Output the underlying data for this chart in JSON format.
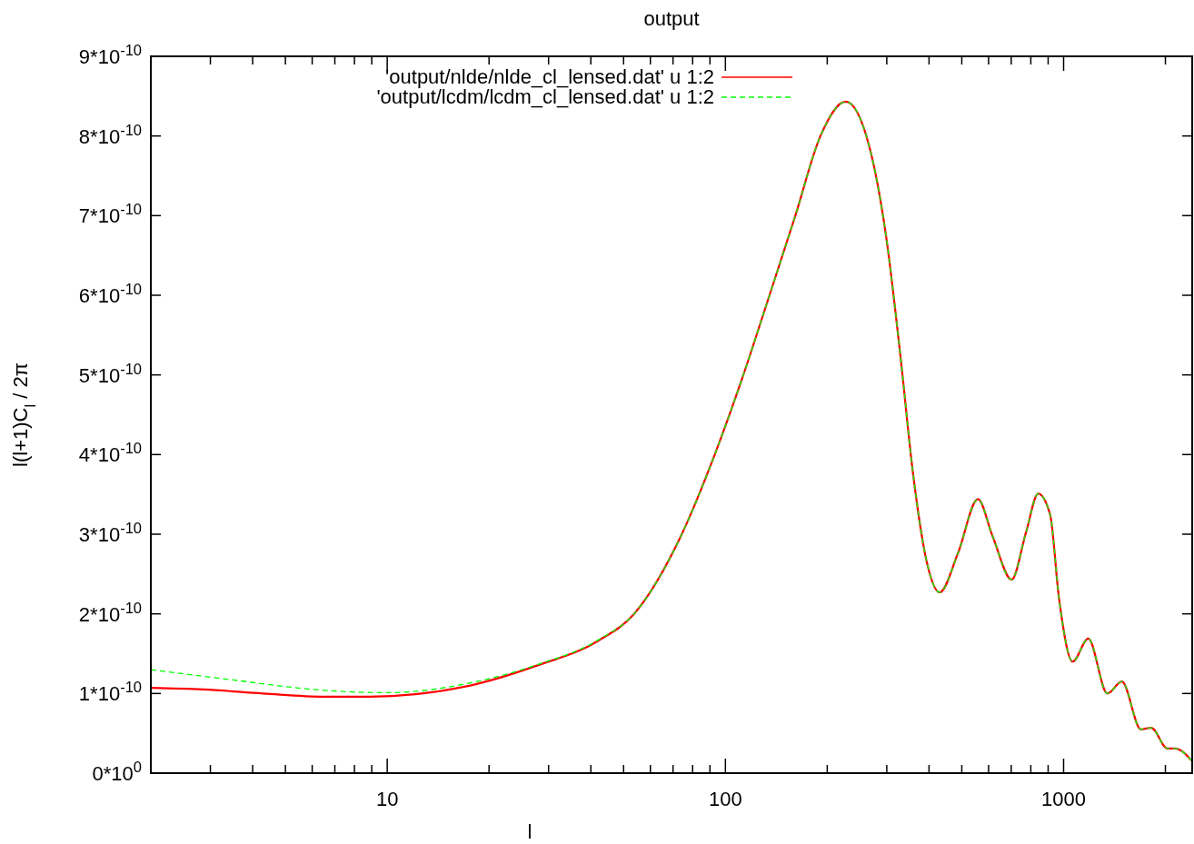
{
  "chart_data": {
    "type": "line",
    "title": "output",
    "xlabel": "l",
    "ylabel": "l(l+1)C$_{l}$ / 2π",
    "log": "x",
    "legend": "top left",
    "xlim": [
      2,
      2400
    ],
    "ylim": [
      0,
      9e-10
    ],
    "xticks": [
      {
        "value": 2,
        "label": null
      },
      {
        "value": 3,
        "label": null
      },
      {
        "value": 4,
        "label": null
      },
      {
        "value": 5,
        "label": null
      },
      {
        "value": 6,
        "label": null
      },
      {
        "value": 7,
        "label": null
      },
      {
        "value": 8,
        "label": null
      },
      {
        "value": 9,
        "label": null
      },
      10,
      {
        "value": 20,
        "label": null
      },
      {
        "value": 30,
        "label": null
      },
      {
        "value": 40,
        "label": null
      },
      {
        "value": 50,
        "label": null
      },
      {
        "value": 60,
        "label": null
      },
      {
        "value": 70,
        "label": null
      },
      {
        "value": 80,
        "label": null
      },
      {
        "value": 90,
        "label": null
      },
      100,
      {
        "value": 200,
        "label": null
      },
      {
        "value": 300,
        "label": null
      },
      {
        "value": 400,
        "label": null
      },
      {
        "value": 500,
        "label": null
      },
      {
        "value": 600,
        "label": null
      },
      {
        "value": 700,
        "label": null
      },
      {
        "value": 800,
        "label": null
      },
      {
        "value": 900,
        "label": null
      },
      1000,
      {
        "value": 2000,
        "label": null
      }
    ],
    "yticks": [
      {
        "value": 0,
        "label": "0*10$^{0}$"
      },
      {
        "value": 1e-10,
        "label": "1*10$^{-10}$"
      },
      {
        "value": 2e-10,
        "label": "2*10$^{-10}$"
      },
      {
        "value": 3e-10,
        "label": "3*10$^{-10}$"
      },
      {
        "value": 4e-10,
        "label": "4*10$^{-10}$"
      },
      {
        "value": 5e-10,
        "label": "5*10$^{-10}$"
      },
      {
        "value": 6e-10,
        "label": "6*10$^{-10}$"
      },
      {
        "value": 7e-10,
        "label": "7*10$^{-10}$"
      },
      {
        "value": 8e-10,
        "label": "8*10$^{-10}$"
      },
      {
        "value": 9e-10,
        "label": "9*10$^{-10}$"
      }
    ],
    "series": [
      {
        "name": "'output/nlde/nlde_cl_lensed.dat' u 1:2",
        "color": "#ff0000",
        "line_style": "solid",
        "x": [
          2,
          2.86,
          4.3,
          6.5,
          8.9,
          12.1,
          18.4,
          27.7,
          42,
          53.7,
          74.3,
          93,
          113,
          135,
          161,
          191,
          227,
          267,
          300,
          329,
          359,
          394,
          430,
          487,
          558,
          616,
          702,
          775,
          841,
          912,
          969,
          1064,
          1183,
          1347,
          1487,
          1693,
          1815,
          2029,
          2133,
          2400
        ],
        "values": [
          1.07e-10,
          1.05e-10,
          1e-10,
          9.6e-11,
          9.6e-11,
          9.9e-11,
          1.12e-10,
          1.35e-10,
          1.66e-10,
          2e-10,
          3e-10,
          4e-10,
          5e-10,
          6e-10,
          7e-10,
          8e-10,
          8.43e-10,
          7.85e-10,
          6.68e-10,
          5.25e-10,
          3.75e-10,
          2.65e-10,
          2.27e-10,
          2.76e-10,
          3.44e-10,
          2.98e-10,
          2.43e-10,
          3.03e-10,
          3.51e-10,
          3.25e-10,
          2.2e-10,
          1.4e-10,
          1.69e-10,
          1e-10,
          1.15e-10,
          5.5e-11,
          5.7e-11,
          3.1e-11,
          3.1e-11,
          1.5e-11
        ]
      },
      {
        "name": "'output/lcdm/lcdm_cl_lensed.dat' u 1:2",
        "color": "#00ff00",
        "line_style": "dashed",
        "x": [
          2,
          3.5,
          6.5,
          9.9,
          18.4,
          27.7,
          42,
          53.7,
          74.3,
          93,
          113,
          135,
          161,
          191,
          227,
          267,
          300,
          329,
          359,
          394,
          430,
          487,
          558,
          616,
          702,
          775,
          841,
          912,
          969,
          1064,
          1183,
          1347,
          1487,
          1693,
          1815,
          2029,
          2133,
          2400
        ],
        "values": [
          1.3e-10,
          1.17e-10,
          1.04e-10,
          1.01e-10,
          1.15e-10,
          1.36e-10,
          1.67e-10,
          2e-10,
          3e-10,
          4e-10,
          5e-10,
          6e-10,
          7e-10,
          8e-10,
          8.43e-10,
          7.85e-10,
          6.68e-10,
          5.25e-10,
          3.75e-10,
          2.65e-10,
          2.27e-10,
          2.76e-10,
          3.44e-10,
          2.98e-10,
          2.43e-10,
          3.03e-10,
          3.51e-10,
          3.25e-10,
          2.2e-10,
          1.4e-10,
          1.69e-10,
          1e-10,
          1.15e-10,
          5.5e-11,
          5.7e-11,
          3.1e-11,
          3.1e-11,
          1.5e-11
        ]
      }
    ]
  }
}
